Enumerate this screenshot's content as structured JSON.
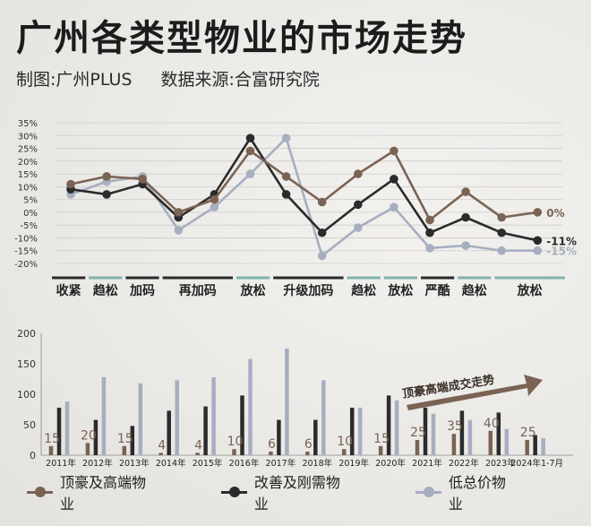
{
  "header": {
    "title": "广州各类型物业的市场走势",
    "credit": "制图:广州PLUS",
    "source": "数据来源:合富研究院"
  },
  "colors": {
    "luxury": "#7a6354",
    "improve": "#2b2b2b",
    "low": "#a6aec0",
    "phase_black": "#2a2a2a",
    "phase_teal": "#7fb3ae",
    "arrow": "#7a6354"
  },
  "chart_data": [
    {
      "type": "line",
      "y_ticks": [
        "35%",
        "30%",
        "25%",
        "20%",
        "15%",
        "10%",
        "5%",
        "0%",
        "-5%",
        "-10%",
        "-15%",
        "-20%"
      ],
      "ylim": [
        -20,
        35
      ],
      "x_count": 17,
      "series": [
        {
          "key": "luxury",
          "values": [
            11,
            14,
            13,
            0,
            5,
            24,
            14,
            4,
            15,
            24,
            -3,
            8,
            -2,
            0
          ]
        },
        {
          "key": "improve",
          "values": [
            9,
            7,
            11,
            -2,
            7,
            29,
            7,
            -8,
            3,
            13,
            -8,
            -2,
            -8,
            -11
          ]
        },
        {
          "key": "low",
          "values": [
            7,
            12,
            14,
            -7,
            2,
            15,
            29,
            -17,
            -6,
            2,
            -14,
            -13,
            -15,
            -15
          ]
        }
      ],
      "x_index": [
        0,
        1,
        2,
        3,
        4,
        5,
        6,
        7,
        8,
        9,
        10,
        11,
        12,
        13
      ],
      "end_labels": [
        {
          "series": "luxury",
          "text": "0%"
        },
        {
          "series": "improve",
          "text": "-11%"
        },
        {
          "series": "low",
          "text": "-15%"
        }
      ],
      "phases": [
        {
          "label": "收紧",
          "from": 0,
          "to": 1,
          "tone": "black"
        },
        {
          "label": "趋松",
          "from": 1,
          "to": 2,
          "tone": "teal"
        },
        {
          "label": "加码",
          "from": 2,
          "to": 3,
          "tone": "black"
        },
        {
          "label": "再加码",
          "from": 3,
          "to": 5,
          "tone": "black"
        },
        {
          "label": "放松",
          "from": 5,
          "to": 6,
          "tone": "teal"
        },
        {
          "label": "升级加码",
          "from": 6,
          "to": 8,
          "tone": "black"
        },
        {
          "label": "趋松",
          "from": 8,
          "to": 9,
          "tone": "teal"
        },
        {
          "label": "放松",
          "from": 9,
          "to": 10,
          "tone": "teal"
        },
        {
          "label": "严酷",
          "from": 10,
          "to": 11,
          "tone": "black"
        },
        {
          "label": "趋松",
          "from": 11,
          "to": 12,
          "tone": "teal"
        },
        {
          "label": "放松",
          "from": 12,
          "to": 14,
          "tone": "teal"
        }
      ]
    },
    {
      "type": "bar",
      "categories": [
        "2011年",
        "2012年",
        "2013年",
        "2014年",
        "2015年",
        "2016年",
        "2017年",
        "2018年",
        "2019年",
        "2020年",
        "2021年",
        "2022年",
        "2023年",
        "2024年1-7月"
      ],
      "y_ticks": [
        "200",
        "150",
        "100",
        "50",
        "0"
      ],
      "ylim": [
        0,
        200
      ],
      "series": [
        {
          "name": "顶豪及高端物业",
          "key": "luxury",
          "values": [
            15,
            20,
            15,
            4,
            4,
            10,
            6,
            6,
            10,
            15,
            25,
            35,
            40,
            25
          ]
        },
        {
          "name": "改善及刚需物业",
          "key": "improve",
          "values": [
            78,
            58,
            48,
            73,
            80,
            98,
            58,
            58,
            78,
            98,
            78,
            73,
            70,
            33
          ]
        },
        {
          "name": "低总价物业",
          "key": "low",
          "values": [
            88,
            128,
            118,
            123,
            128,
            158,
            175,
            123,
            78,
            90,
            68,
            58,
            43,
            28
          ]
        }
      ],
      "annotation": "顶豪高端成交走势"
    }
  ]
}
